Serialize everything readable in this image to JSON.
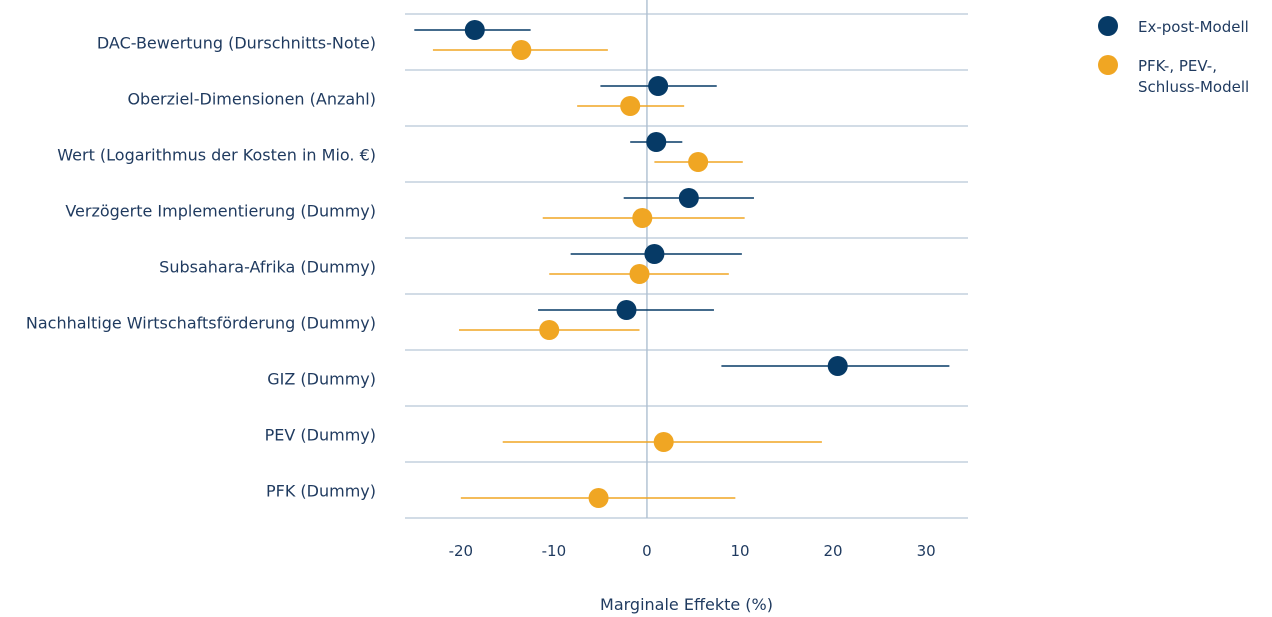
{
  "chart_data": {
    "type": "scatter",
    "subtype": "dot-and-whisker",
    "categories": [
      "DAC-Bewertung (Durschnitts-Note)",
      "Oberziel-Dimensionen (Anzahl)",
      "Wert (Logarithmus der Kosten in Mio. €)",
      "Verzögerte Implementierung (Dummy)",
      "Subsahara-Afrika (Dummy)",
      "Nachhaltige Wirtschaftsförderung (Dummy)",
      "GIZ (Dummy)",
      "PEV (Dummy)",
      "PFK (Dummy)"
    ],
    "series": [
      {
        "name": "Ex-post-Modell",
        "color": "#063a66",
        "values": [
          -18.5,
          1.2,
          1.0,
          4.5,
          0.8,
          -2.2,
          20.5,
          null,
          null
        ],
        "ci_low": [
          -25,
          -5,
          -1.8,
          -2.5,
          -8.2,
          -11.7,
          8,
          null,
          null
        ],
        "ci_high": [
          -12.5,
          7.5,
          3.8,
          11.5,
          10.2,
          7.2,
          32.5,
          null,
          null
        ]
      },
      {
        "name": "PFK-, PEV-, Schluss-Modell",
        "legend_lines": [
          "PFK-, PEV-,",
          "Schluss-Modell"
        ],
        "color": "#f0a623",
        "values": [
          -13.5,
          -1.8,
          5.5,
          -0.5,
          -0.8,
          -10.5,
          null,
          1.8,
          -5.2
        ],
        "ci_low": [
          -23,
          -7.5,
          0.8,
          -11.2,
          -10.5,
          -20.2,
          null,
          -15.5,
          -20
        ],
        "ci_high": [
          -4.2,
          4,
          10.3,
          10.5,
          8.8,
          -0.8,
          null,
          18.8,
          9.5
        ]
      }
    ],
    "x": {
      "label": "Marginale Effekte (%)",
      "ticks": [
        -20,
        -10,
        0,
        10,
        20,
        30
      ],
      "tick_labels": [
        "-20",
        "-10",
        "0",
        "10",
        "20",
        "30"
      ],
      "range": [
        -26,
        34.5
      ]
    },
    "grid": true,
    "legend": "top-right",
    "colors": {
      "grid": "#b8c7d6",
      "zero_line": "#aebfd1",
      "text": "#1f3a5f"
    }
  }
}
